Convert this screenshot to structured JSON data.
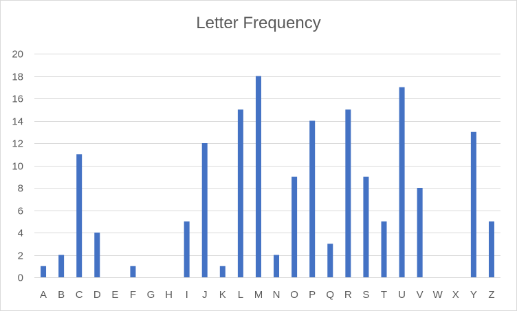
{
  "chart_data": {
    "type": "bar",
    "title": "Letter Frequency",
    "xlabel": "",
    "ylabel": "",
    "categories": [
      "A",
      "B",
      "C",
      "D",
      "E",
      "F",
      "G",
      "H",
      "I",
      "J",
      "K",
      "L",
      "M",
      "N",
      "O",
      "P",
      "Q",
      "R",
      "S",
      "T",
      "U",
      "V",
      "W",
      "X",
      "Y",
      "Z"
    ],
    "values": [
      1,
      2,
      11,
      4,
      0,
      1,
      0,
      0,
      5,
      12,
      1,
      15,
      18,
      2,
      9,
      14,
      3,
      15,
      9,
      5,
      17,
      8,
      0,
      0,
      13,
      5
    ],
    "ylim": [
      0,
      20
    ],
    "yticks": [
      0,
      2,
      4,
      6,
      8,
      10,
      12,
      14,
      16,
      18,
      20
    ],
    "grid": true,
    "legend": "none",
    "bar_color": "#4472c4",
    "grid_color": "#d9d9d9"
  }
}
